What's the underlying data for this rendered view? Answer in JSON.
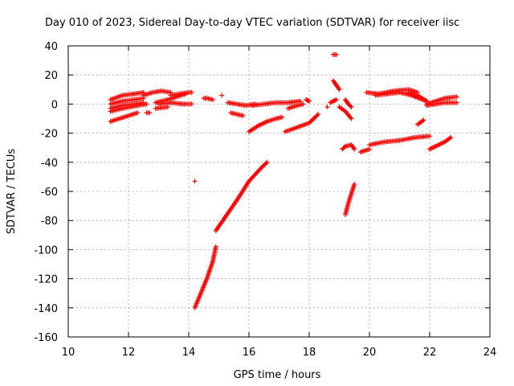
{
  "chart_data": {
    "type": "scatter",
    "title": "Day 010 of 2023, Sidereal Day-to-day VTEC variation (SDTVAR) for receiver iisc",
    "xlabel": "GPS time / hours",
    "ylabel": "SDTVAR / TECUs",
    "xlim": [
      10,
      24
    ],
    "ylim": [
      -160,
      40
    ],
    "xticks": [
      "10",
      "12",
      "14",
      "16",
      "18",
      "20",
      "22",
      "24"
    ],
    "yticks": [
      "40",
      "20",
      "0",
      "-20",
      "-40",
      "-60",
      "-80",
      "-100",
      "-120",
      "-140",
      "-160"
    ],
    "grid": true,
    "marker": "+",
    "marker_color": "#ff0000",
    "segments": [
      {
        "x": [
          11.4,
          11.8,
          12.2,
          12.5
        ],
        "y": [
          3,
          6,
          7,
          8
        ]
      },
      {
        "x": [
          11.4,
          11.8,
          12.2,
          12.5
        ],
        "y": [
          0,
          2,
          3,
          4
        ]
      },
      {
        "x": [
          11.4,
          11.8,
          12.2,
          12.5
        ],
        "y": [
          -3,
          -1,
          0,
          1
        ]
      },
      {
        "x": [
          11.4,
          11.8,
          12.3,
          12.6
        ],
        "y": [
          -5,
          -3,
          -1,
          0
        ]
      },
      {
        "x": [
          11.4,
          11.7,
          12.0,
          12.3
        ],
        "y": [
          -12,
          -10,
          -8,
          -6
        ]
      },
      {
        "x": [
          12.5,
          12.8,
          13.1,
          13.4
        ],
        "y": [
          6,
          8,
          9,
          8
        ]
      },
      {
        "x": [
          12.9,
          13.3,
          13.6,
          13.9
        ],
        "y": [
          1,
          3,
          5,
          7
        ]
      },
      {
        "x": [
          13.4,
          13.7,
          14.0,
          14.1
        ],
        "y": [
          6,
          7,
          8,
          8
        ]
      },
      {
        "x": [
          13.0,
          13.4,
          13.8,
          14.1
        ],
        "y": [
          0,
          1,
          0,
          0
        ]
      },
      {
        "x": [
          12.9,
          13.3
        ],
        "y": [
          -3,
          -2
        ]
      },
      {
        "x": [
          12.6,
          12.7
        ],
        "y": [
          -6,
          -6
        ]
      },
      {
        "x": [
          14.5,
          14.6,
          14.8
        ],
        "y": [
          4,
          4,
          3
        ]
      },
      {
        "x": [
          14.2
        ],
        "y": [
          -53
        ]
      },
      {
        "x": [
          14.2,
          14.4,
          14.6,
          14.8,
          14.9
        ],
        "y": [
          -140,
          -130,
          -120,
          -108,
          -98
        ]
      },
      {
        "x": [
          14.9,
          15.2,
          15.6,
          16.0,
          16.4,
          16.6
        ],
        "y": [
          -87,
          -78,
          -66,
          -53,
          -44,
          -40
        ]
      },
      {
        "x": [
          15.1
        ],
        "y": [
          6
        ]
      },
      {
        "x": [
          15.3,
          15.6,
          15.9,
          16.2
        ],
        "y": [
          1,
          0,
          -1,
          0
        ]
      },
      {
        "x": [
          15.4,
          15.6,
          15.8
        ],
        "y": [
          -6,
          -7,
          -8
        ]
      },
      {
        "x": [
          16.0,
          16.3,
          16.6,
          16.9,
          17.1
        ],
        "y": [
          -19,
          -15,
          -12,
          -10,
          -9
        ]
      },
      {
        "x": [
          16.1,
          16.5,
          16.9,
          17.3,
          17.7
        ],
        "y": [
          -1,
          0,
          1,
          1,
          2
        ]
      },
      {
        "x": [
          17.3,
          17.6,
          17.8
        ],
        "y": [
          -3,
          -1,
          0
        ]
      },
      {
        "x": [
          17.2,
          17.6,
          18.0,
          18.3
        ],
        "y": [
          -19,
          -16,
          -13,
          -7
        ]
      },
      {
        "x": [
          17.9,
          18.0
        ],
        "y": [
          3,
          2
        ]
      },
      {
        "x": [
          18.6
        ],
        "y": [
          -2
        ]
      },
      {
        "x": [
          18.8,
          18.9
        ],
        "y": [
          34,
          34
        ]
      },
      {
        "x": [
          18.8,
          18.9,
          19.0
        ],
        "y": [
          16,
          13,
          10
        ]
      },
      {
        "x": [
          18.7,
          18.9
        ],
        "y": [
          1,
          3
        ]
      },
      {
        "x": [
          19.0,
          19.2,
          19.4
        ],
        "y": [
          -2,
          -5,
          -10
        ]
      },
      {
        "x": [
          19.2,
          19.3,
          19.4
        ],
        "y": [
          3,
          0,
          -2
        ]
      },
      {
        "x": [
          19.1,
          19.2,
          19.4,
          19.5
        ],
        "y": [
          -31,
          -29,
          -28,
          -31
        ]
      },
      {
        "x": [
          19.2,
          19.3,
          19.5
        ],
        "y": [
          -76,
          -68,
          -55
        ]
      },
      {
        "x": [
          19.7,
          20.0
        ],
        "y": [
          -33,
          -31
        ]
      },
      {
        "x": [
          20.0,
          20.5,
          21.0,
          21.5,
          22.0
        ],
        "y": [
          -28,
          -26,
          -25,
          -23,
          -22
        ]
      },
      {
        "x": [
          19.9,
          20.3,
          20.8,
          21.3,
          21.6
        ],
        "y": [
          8,
          7,
          9,
          10,
          8
        ]
      },
      {
        "x": [
          20.2,
          20.6,
          21.0,
          21.4,
          21.9
        ],
        "y": [
          6,
          7,
          8,
          6,
          2
        ]
      },
      {
        "x": [
          21.3,
          21.6,
          21.9
        ],
        "y": [
          8,
          6,
          2
        ]
      },
      {
        "x": [
          21.9,
          22.2,
          22.5,
          22.9
        ],
        "y": [
          0,
          2,
          4,
          5
        ]
      },
      {
        "x": [
          21.9,
          22.2,
          22.5,
          22.9
        ],
        "y": [
          -1,
          0,
          1,
          1
        ]
      },
      {
        "x": [
          21.6,
          21.8
        ],
        "y": [
          -14,
          -11
        ]
      },
      {
        "x": [
          22.0,
          22.2,
          22.5,
          22.7
        ],
        "y": [
          -31,
          -29,
          -26,
          -23
        ]
      }
    ]
  }
}
